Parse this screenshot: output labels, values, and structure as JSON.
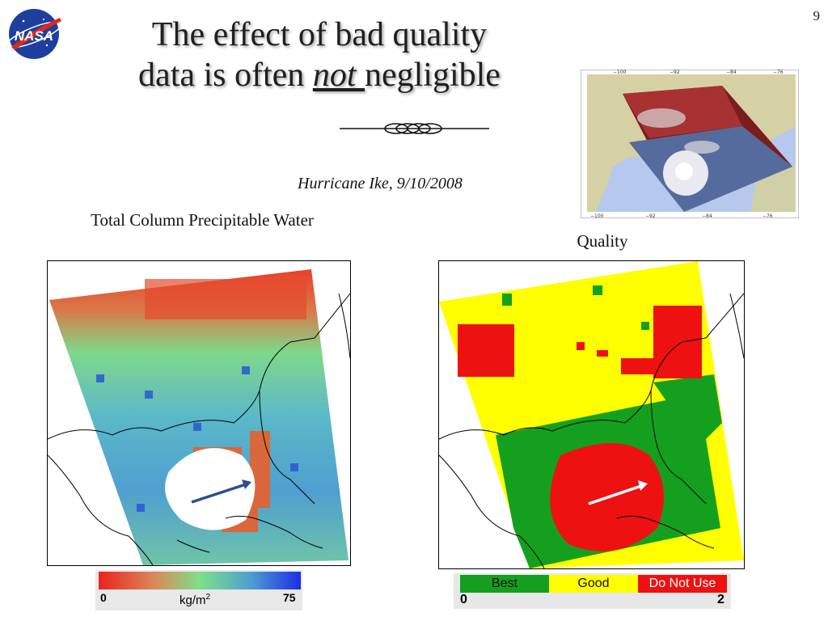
{
  "slide": {
    "title_line1": "The effect of bad quality",
    "title_line2_prefix": "data is often ",
    "title_emphasis": "not ",
    "title_line2_suffix": "negligible",
    "page_number": "9",
    "subtitle": "Hurricane Ike, 9/10/2008",
    "logo_text": "NASA"
  },
  "left_panel": {
    "label": "Total Column Precipitable Water",
    "colorbar": {
      "min_label": "0",
      "max_label": "75",
      "units_base": "kg/m",
      "units_exp": "2"
    }
  },
  "right_panel": {
    "label": "Quality",
    "legend": {
      "best": "Best",
      "good": "Good",
      "bad": "Do Not Use",
      "min_label": "0",
      "max_label": "2",
      "colors": {
        "best": "#14a01e",
        "good": "#ffff00",
        "bad": "#ee1111"
      }
    }
  },
  "inset": {
    "x_ticks": [
      "−100",
      "−92",
      "−84",
      "−76"
    ]
  }
}
